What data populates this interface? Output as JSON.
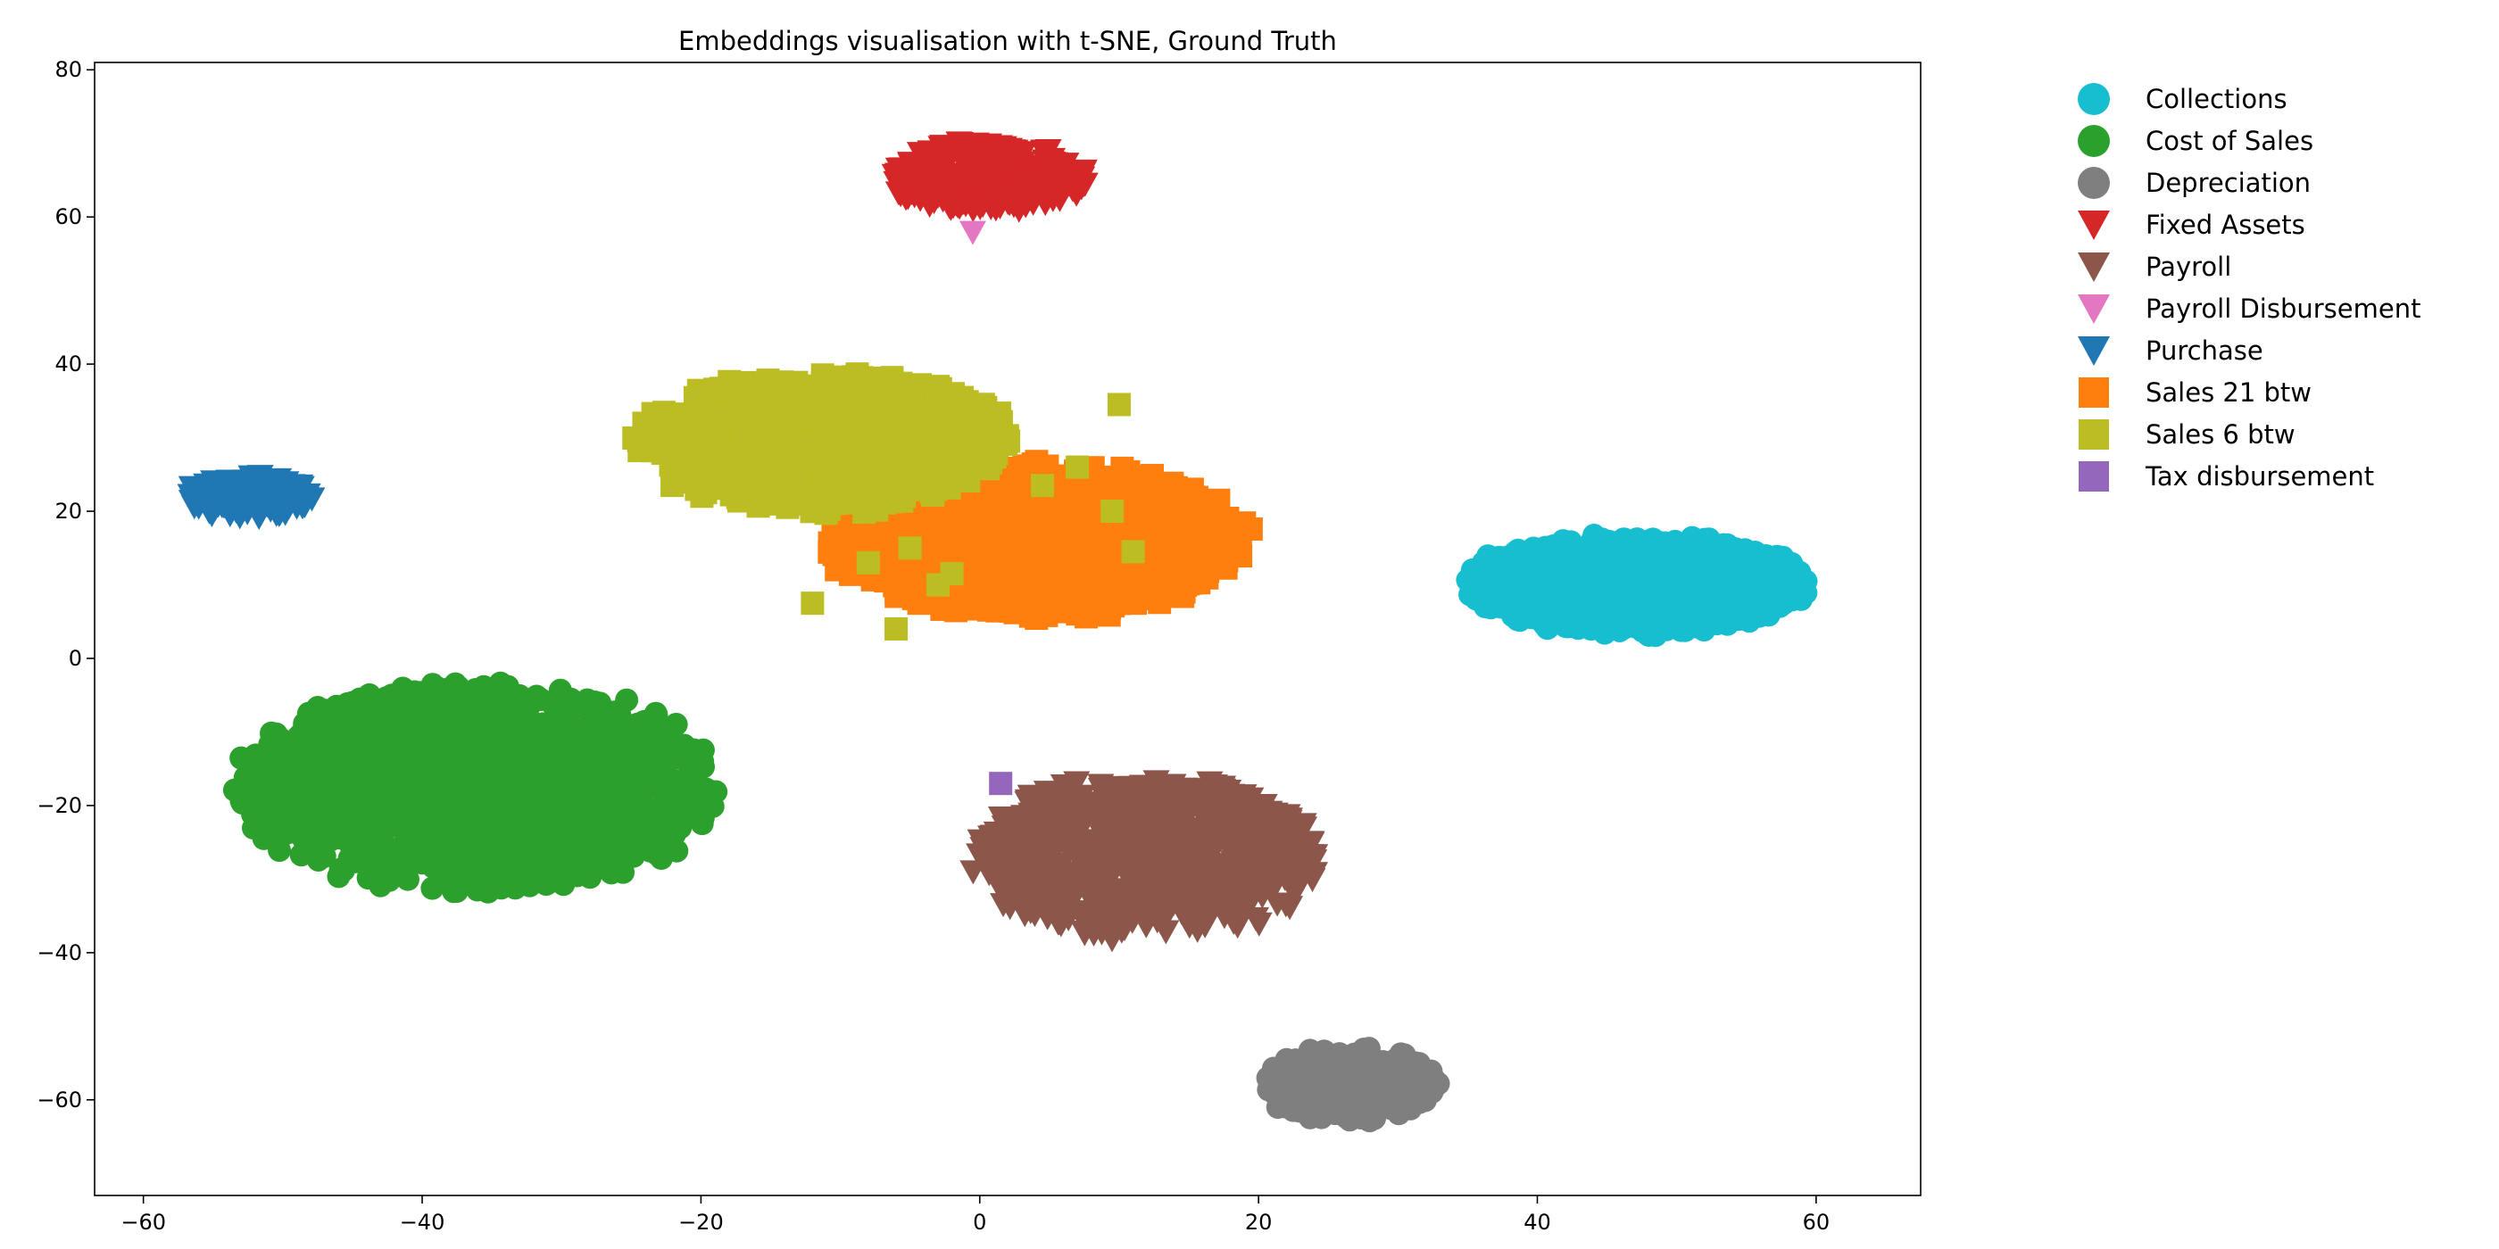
{
  "chart_data": {
    "type": "scatter",
    "title": "Embeddings visualisation with t-SNE, Ground Truth",
    "xlabel": "",
    "ylabel": "",
    "xlim": [
      -63.5,
      67.5
    ],
    "ylim": [
      -73,
      81
    ],
    "x_ticks": [
      -60,
      -40,
      -20,
      0,
      20,
      40,
      60
    ],
    "y_ticks": [
      -60,
      -40,
      -20,
      0,
      20,
      40,
      60,
      80
    ],
    "x_tick_labels": [
      "−60",
      "−40",
      "−20",
      "0",
      "20",
      "40",
      "60"
    ],
    "y_tick_labels": [
      "−60",
      "−40",
      "−20",
      "0",
      "20",
      "40",
      "60",
      "80"
    ],
    "grid": false,
    "legend_position": "right",
    "series": [
      {
        "name": "Collections",
        "color": "#17becf",
        "marker": "circle",
        "cluster": {
          "center": [
            47,
            10
          ],
          "spread": [
            13,
            7
          ],
          "count": 900
        }
      },
      {
        "name": "Cost of Sales",
        "color": "#2ca02c",
        "marker": "circle",
        "cluster": {
          "center": [
            -36,
            -17.5
          ],
          "spread": [
            18,
            15
          ],
          "count": 1300
        }
      },
      {
        "name": "Depreciation",
        "color": "#7f7f7f",
        "marker": "circle",
        "cluster": {
          "center": [
            26.5,
            -58
          ],
          "spread": [
            6.5,
            5.5
          ],
          "count": 250
        }
      },
      {
        "name": "Fixed Assets",
        "color": "#d62728",
        "marker": "triangle-down",
        "cluster": {
          "center": [
            0.5,
            65.5
          ],
          "spread": [
            7.5,
            5
          ],
          "count": 300
        }
      },
      {
        "name": "Payroll",
        "color": "#8c564b",
        "marker": "triangle-down",
        "cluster": {
          "center": [
            12,
            -27
          ],
          "spread": [
            13,
            11.5
          ],
          "count": 800
        }
      },
      {
        "name": "Payroll Disbursement",
        "color": "#e377c2",
        "marker": "triangle-down",
        "points": [
          [
            -0.5,
            58
          ]
        ]
      },
      {
        "name": "Purchase",
        "color": "#1f77b4",
        "marker": "triangle-down",
        "cluster": {
          "center": [
            -52.5,
            22
          ],
          "spread": [
            5,
            3
          ],
          "count": 120
        }
      },
      {
        "name": "Sales 21 btw",
        "color": "#ff7f0e",
        "marker": "square",
        "cluster": {
          "center": [
            4,
            16
          ],
          "spread": [
            16,
            11
          ],
          "count": 900
        }
      },
      {
        "name": "Sales 6 btw",
        "color": "#bcbd22",
        "marker": "square",
        "cluster": {
          "center": [
            -11,
            29.5
          ],
          "spread": [
            14,
            10
          ],
          "count": 800
        }
      },
      {
        "name": "Tax disbursement",
        "color": "#9467bd",
        "marker": "square",
        "points": [
          [
            1.5,
            -17
          ]
        ]
      }
    ],
    "sales6_outliers": [
      [
        -12,
        7.5
      ],
      [
        -6,
        4
      ],
      [
        -3,
        10
      ],
      [
        -2,
        11.5
      ],
      [
        -8,
        13
      ],
      [
        4.5,
        23.5
      ],
      [
        7,
        26
      ],
      [
        10,
        34.5
      ],
      [
        9.5,
        20
      ],
      [
        11,
        14.5
      ],
      [
        -5,
        15
      ]
    ]
  }
}
